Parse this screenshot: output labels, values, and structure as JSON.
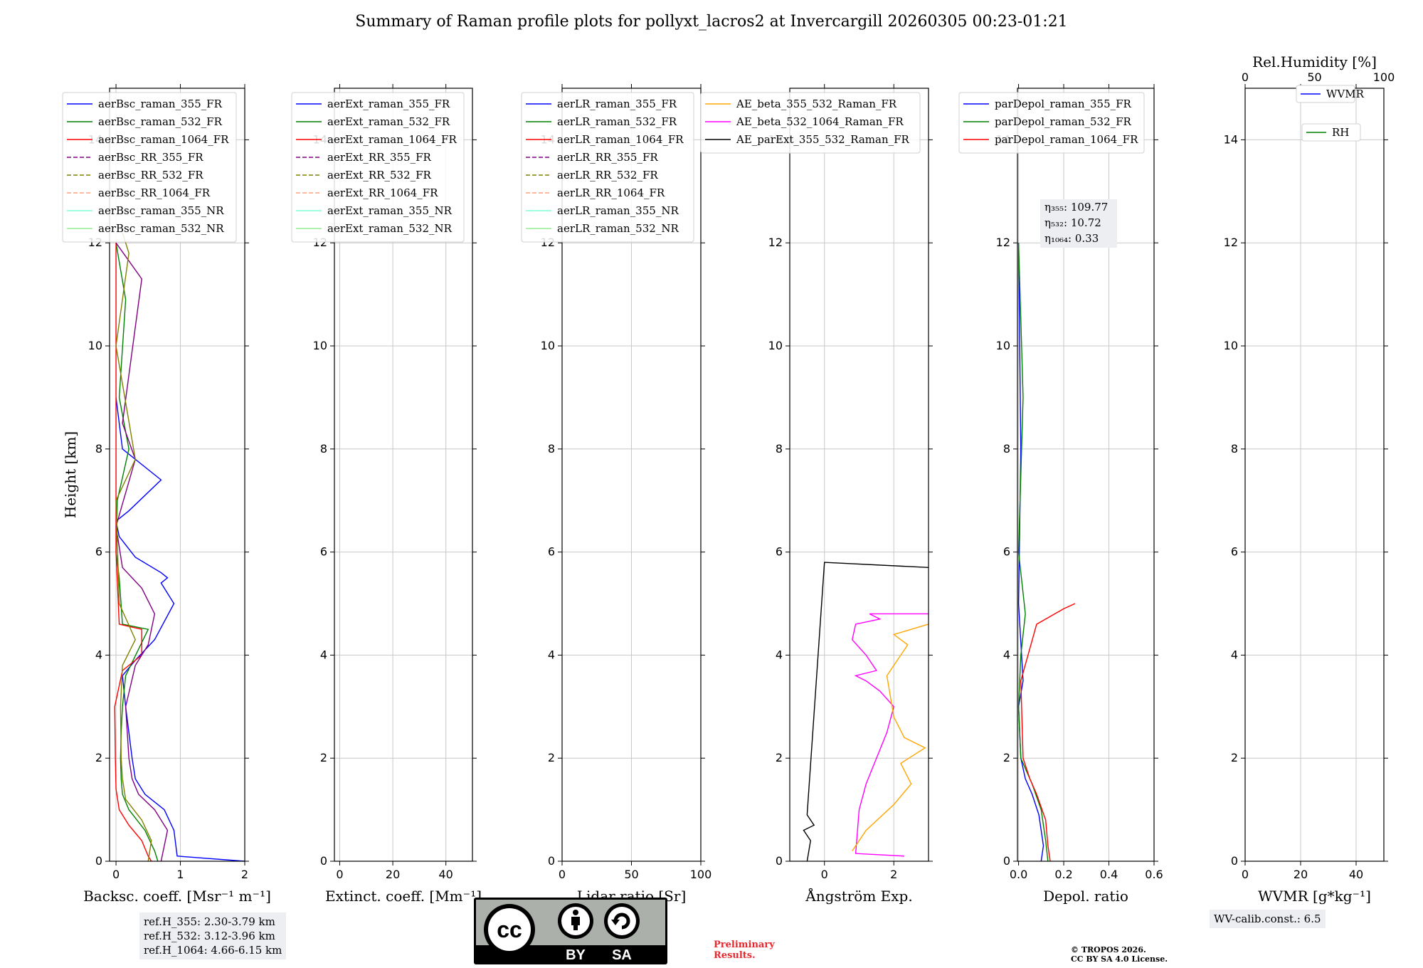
{
  "title": "Summary of Raman profile plots for pollyxt_lacros2 at Invercargill 20260305 00:23-01:21",
  "chart_data": [
    {
      "type": "line",
      "name": "backscatter",
      "xlabel": "Backsc. coeff. [Msr⁻¹ m⁻¹]",
      "ylabel": "Height [km]",
      "xlim": [
        -0.1,
        2
      ],
      "ylim": [
        0,
        15
      ],
      "xticks": [
        "0",
        "1",
        "2"
      ],
      "xtick_values": [
        0,
        1,
        2
      ],
      "yticks": [
        "0",
        "2",
        "4",
        "6",
        "8",
        "10",
        "12",
        "14"
      ],
      "legend": [
        {
          "label": "aerBsc_raman_355_FR",
          "color": "#0000ff",
          "style": "solid"
        },
        {
          "label": "aerBsc_raman_532_FR",
          "color": "#008000",
          "style": "solid"
        },
        {
          "label": "aerBsc_raman_1064_FR",
          "color": "#ff0000",
          "style": "solid"
        },
        {
          "label": "aerBsc_RR_355_FR",
          "color": "#800080",
          "style": "dashed"
        },
        {
          "label": "aerBsc_RR_532_FR",
          "color": "#808000",
          "style": "dashed"
        },
        {
          "label": "aerBsc_RR_1064_FR",
          "color": "#ffa07a",
          "style": "dashed"
        },
        {
          "label": "aerBsc_raman_355_NR",
          "color": "#7fffd4",
          "style": "solid"
        },
        {
          "label": "aerBsc_raman_532_NR",
          "color": "#90ee90",
          "style": "solid"
        }
      ],
      "series": [
        {
          "name": "aerBsc_raman_355_FR",
          "color": "#0000ff",
          "x": [
            2.0,
            0.95,
            0.9,
            0.75,
            0.45,
            0.3,
            0.25,
            0.2,
            0.15,
            0.1,
            0.3,
            0.6,
            0.9,
            0.7,
            0.8,
            0.7,
            0.3,
            0.05,
            0.0,
            0.2,
            0.7,
            0.1,
            0.0
          ],
          "y": [
            0.0,
            0.1,
            0.6,
            1.0,
            1.3,
            1.6,
            2.0,
            2.5,
            3.0,
            3.6,
            3.9,
            4.3,
            5.0,
            5.4,
            5.5,
            5.6,
            5.9,
            6.3,
            6.6,
            6.8,
            7.4,
            8.0,
            9.0
          ]
        },
        {
          "name": "aerBsc_raman_532_FR",
          "color": "#008000",
          "x": [
            0.65,
            0.6,
            0.45,
            0.2,
            0.1,
            0.08,
            0.07,
            0.08,
            0.1,
            0.15,
            0.5,
            0.1,
            0.05,
            0.0,
            0.02,
            0.2,
            0.05,
            0.15,
            0.0
          ],
          "y": [
            0.0,
            0.2,
            0.6,
            1.0,
            1.3,
            1.6,
            2.0,
            2.5,
            3.0,
            3.6,
            4.5,
            4.6,
            5.5,
            6.0,
            7.0,
            8.0,
            9.0,
            10.9,
            12.0
          ]
        },
        {
          "name": "aerBsc_raman_1064_FR",
          "color": "#ff0000",
          "x": [
            0.55,
            0.5,
            0.4,
            0.2,
            0.05,
            0.0,
            -0.01,
            -0.02,
            0.1,
            0.4,
            0.4,
            0.05,
            0.0,
            0.0,
            0.0
          ],
          "y": [
            0.0,
            0.1,
            0.4,
            0.7,
            1.0,
            1.4,
            2.0,
            3.0,
            3.7,
            4.0,
            4.5,
            4.6,
            6.0,
            8.0,
            12.0
          ]
        },
        {
          "name": "aerBsc_RR_355_FR",
          "color": "#800080",
          "x": [
            0.7,
            0.8,
            0.6,
            0.35,
            0.25,
            0.2,
            0.15,
            0.3,
            0.5,
            0.6,
            0.4,
            0.1,
            0.0,
            0.3,
            0.1,
            0.4,
            0.0
          ],
          "y": [
            0.0,
            0.6,
            1.0,
            1.3,
            1.6,
            2.0,
            3.0,
            3.8,
            4.2,
            4.8,
            5.3,
            5.7,
            6.5,
            7.8,
            8.5,
            11.3,
            12.0
          ]
        },
        {
          "name": "aerBsc_RR_532_FR",
          "color": "#808000",
          "x": [
            0.5,
            0.55,
            0.4,
            0.15,
            0.1,
            0.08,
            0.07,
            0.1,
            0.3,
            0.05,
            0.0,
            0.3,
            0.0,
            0.2,
            0.1
          ],
          "y": [
            0.0,
            0.4,
            0.8,
            1.2,
            1.6,
            2.0,
            3.0,
            3.8,
            4.3,
            5.0,
            7.0,
            7.8,
            10.0,
            11.8,
            12.2
          ]
        }
      ]
    },
    {
      "type": "line",
      "name": "extinction",
      "xlabel": "Extinct. coeff. [Mm⁻¹]",
      "xlim": [
        -2,
        50
      ],
      "ylim": [
        0,
        15
      ],
      "xticks": [
        "0",
        "20",
        "40"
      ],
      "xtick_values": [
        0,
        20,
        40
      ],
      "yticks": [
        "0",
        "2",
        "4",
        "6",
        "8",
        "10",
        "12",
        "14"
      ],
      "legend": [
        {
          "label": "aerExt_raman_355_FR",
          "color": "#0000ff",
          "style": "solid"
        },
        {
          "label": "aerExt_raman_532_FR",
          "color": "#008000",
          "style": "solid"
        },
        {
          "label": "aerExt_raman_1064_FR",
          "color": "#ff0000",
          "style": "solid"
        },
        {
          "label": "aerExt_RR_355_FR",
          "color": "#800080",
          "style": "dashed"
        },
        {
          "label": "aerExt_RR_532_FR",
          "color": "#808000",
          "style": "dashed"
        },
        {
          "label": "aerExt_RR_1064_FR",
          "color": "#ffa07a",
          "style": "dashed"
        },
        {
          "label": "aerExt_raman_355_NR",
          "color": "#7fffd4",
          "style": "solid"
        },
        {
          "label": "aerExt_raman_532_NR",
          "color": "#90ee90",
          "style": "solid"
        }
      ],
      "series": []
    },
    {
      "type": "line",
      "name": "lidar_ratio",
      "xlabel": "Lidar ratio [Sr]",
      "xlim": [
        0,
        100
      ],
      "ylim": [
        0,
        15
      ],
      "xticks": [
        "0",
        "50",
        "100"
      ],
      "xtick_values": [
        0,
        50,
        100
      ],
      "yticks": [
        "0",
        "2",
        "4",
        "6",
        "8",
        "10",
        "12",
        "14"
      ],
      "legend": [
        {
          "label": "aerLR_raman_355_FR",
          "color": "#0000ff",
          "style": "solid"
        },
        {
          "label": "aerLR_raman_532_FR",
          "color": "#008000",
          "style": "solid"
        },
        {
          "label": "aerLR_raman_1064_FR",
          "color": "#ff0000",
          "style": "solid"
        },
        {
          "label": "aerLR_RR_355_FR",
          "color": "#800080",
          "style": "dashed"
        },
        {
          "label": "aerLR_RR_532_FR",
          "color": "#808000",
          "style": "dashed"
        },
        {
          "label": "aerLR_RR_1064_FR",
          "color": "#ffa07a",
          "style": "dashed"
        },
        {
          "label": "aerLR_raman_355_NR",
          "color": "#7fffd4",
          "style": "solid"
        },
        {
          "label": "aerLR_raman_532_NR",
          "color": "#90ee90",
          "style": "solid"
        }
      ],
      "series": []
    },
    {
      "type": "line",
      "name": "angstrom",
      "xlabel": "Ångström Exp.",
      "xlim": [
        -1,
        3
      ],
      "ylim": [
        0,
        15
      ],
      "xticks": [
        "0",
        "2"
      ],
      "xtick_values": [
        0,
        2
      ],
      "yticks": [
        "0",
        "2",
        "4",
        "6",
        "8",
        "10",
        "12",
        "14"
      ],
      "legend": [
        {
          "label": "AE_beta_355_532_Raman_FR",
          "color": "#ffa500",
          "style": "solid"
        },
        {
          "label": "AE_beta_532_1064_Raman_FR",
          "color": "#ff00ff",
          "style": "solid"
        },
        {
          "label": "AE_parExt_355_532_Raman_FR",
          "color": "#000000",
          "style": "solid"
        }
      ],
      "series": [
        {
          "name": "AE_beta_532_1064_Raman_FR",
          "color": "#ff00ff",
          "x": [
            2.3,
            0.9,
            1.0,
            1.2,
            1.5,
            1.8,
            2.0,
            1.6,
            1.2,
            0.9,
            1.5,
            1.2,
            0.8,
            0.9,
            1.6,
            1.3,
            2.0,
            3.0
          ],
          "y": [
            0.1,
            0.15,
            1.0,
            1.5,
            2.0,
            2.5,
            3.0,
            3.3,
            3.5,
            3.6,
            3.7,
            4.0,
            4.3,
            4.6,
            4.7,
            4.8,
            4.8,
            4.8
          ]
        },
        {
          "name": "AE_beta_355_532_Raman_FR",
          "color": "#ffa500",
          "x": [
            0.8,
            1.2,
            2.0,
            2.5,
            2.2,
            2.9,
            2.3,
            2.0,
            1.8,
            2.2,
            2.4,
            2.0,
            2.5,
            3.0
          ],
          "y": [
            0.2,
            0.6,
            1.1,
            1.5,
            1.9,
            2.2,
            2.4,
            2.8,
            3.6,
            4.0,
            4.2,
            4.4,
            4.5,
            4.6
          ]
        },
        {
          "name": "AE_parExt_355_532_Raman_FR",
          "color": "#000000",
          "x": [
            -0.5,
            -0.4,
            -0.6,
            -0.3,
            -0.5,
            0.0,
            0.0,
            3.0
          ],
          "y": [
            0.0,
            0.4,
            0.6,
            0.7,
            0.9,
            5.8,
            5.8,
            5.7
          ]
        }
      ]
    },
    {
      "type": "line",
      "name": "depolarization",
      "xlabel": "Depol. ratio",
      "xlim": [
        -0.005,
        0.6
      ],
      "ylim": [
        0,
        15
      ],
      "xticks": [
        "0.0",
        "0.2",
        "0.4",
        "0.6"
      ],
      "xtick_values": [
        0,
        0.2,
        0.4,
        0.6
      ],
      "yticks": [
        "0",
        "2",
        "4",
        "6",
        "8",
        "10",
        "12",
        "14"
      ],
      "legend": [
        {
          "label": "parDepol_raman_355_FR",
          "color": "#0000ff",
          "style": "solid"
        },
        {
          "label": "parDepol_raman_532_FR",
          "color": "#008000",
          "style": "solid"
        },
        {
          "label": "parDepol_raman_1064_FR",
          "color": "#ff0000",
          "style": "solid"
        }
      ],
      "eta": [
        "η₃₅₅: 109.77",
        "η₅₃₂: 10.72",
        "η₁₀₆₄: 0.33"
      ],
      "series": [
        {
          "name": "parDepol_raman_355_FR",
          "color": "#0000ff",
          "x": [
            0.1,
            0.11,
            0.09,
            0.06,
            0.03,
            0.01,
            0.0,
            0.02,
            0.0,
            0.01,
            0.0
          ],
          "y": [
            0.0,
            0.3,
            0.9,
            1.3,
            1.6,
            2.0,
            3.0,
            3.5,
            5.0,
            8.0,
            12.0
          ]
        },
        {
          "name": "parDepol_raman_532_FR",
          "color": "#008000",
          "x": [
            0.13,
            0.12,
            0.1,
            0.06,
            0.03,
            0.01,
            0.0,
            0.01,
            0.03,
            0.0,
            0.02,
            0.0
          ],
          "y": [
            0.0,
            0.4,
            1.0,
            1.5,
            1.8,
            2.0,
            3.0,
            4.0,
            4.8,
            6.0,
            9.0,
            12.0
          ]
        },
        {
          "name": "parDepol_raman_1064_FR",
          "color": "#ff0000",
          "x": [
            0.14,
            0.13,
            0.12,
            0.08,
            0.05,
            0.02,
            0.01,
            0.08,
            0.2,
            0.25
          ],
          "y": [
            0.0,
            0.3,
            0.8,
            1.3,
            1.6,
            2.0,
            3.5,
            4.6,
            4.9,
            5.0
          ]
        }
      ]
    },
    {
      "type": "line",
      "name": "water_vapor",
      "xlabel": "WVMR [g*kg⁻¹]",
      "top_xlabel": "Rel.Humidity [%]",
      "xlim": [
        0,
        50
      ],
      "ylim": [
        0,
        15
      ],
      "xticks": [
        "0",
        "20",
        "40"
      ],
      "xtick_values": [
        0,
        20,
        40
      ],
      "top_xticks": [
        "0",
        "50",
        "100"
      ],
      "top_xtick_values": [
        0,
        50,
        100
      ],
      "yticks": [
        "0",
        "2",
        "4",
        "6",
        "8",
        "10",
        "12",
        "14"
      ],
      "legend": [
        {
          "label": "WVMR",
          "color": "#0000ff",
          "style": "solid"
        },
        {
          "label": "RH",
          "color": "#008000",
          "style": "solid"
        }
      ],
      "series": []
    }
  ],
  "annotations": {
    "ref_lines": [
      "ref.H_355: 2.30-3.79 km",
      "ref.H_532: 3.12-3.96 km",
      "ref.H_1064: 4.66-6.15 km"
    ],
    "wv_calib": "WV-calib.const.: 6.5",
    "preliminary_1": "Preliminary",
    "preliminary_2": "Results.",
    "copyright_1": "© TROPOS 2026.",
    "copyright_2": "CC BY SA 4.0 License.",
    "license_badge": {
      "by": "BY",
      "sa": "SA",
      "cc": "cc"
    }
  }
}
